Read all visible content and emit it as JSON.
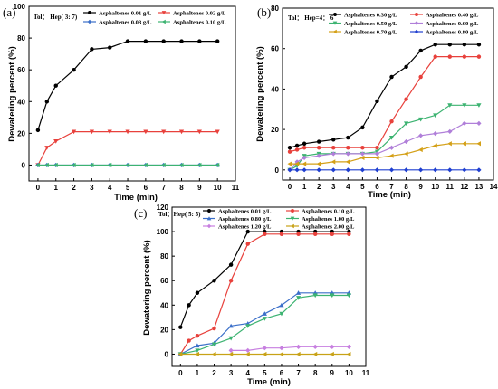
{
  "chart_data": [
    {
      "type": "line",
      "panel": "(a)",
      "annotation": "Tol： Hep( 3: 7)",
      "xlabel": "Time (min)",
      "ylabel": "Dewatering percent (%)",
      "xlim": [
        -0.5,
        11
      ],
      "ylim": [
        -10,
        100
      ],
      "xticks": [
        "0",
        "1",
        "2",
        "3",
        "4",
        "5",
        "6",
        "7",
        "8",
        "9",
        "10",
        "11"
      ],
      "yticks": [
        "0",
        "20",
        "40",
        "60",
        "80",
        "100"
      ],
      "series": [
        {
          "name": "Asphaltenes 0.01 g/L",
          "color": "#000000",
          "marker": "circle",
          "x": [
            0,
            0.5,
            1,
            2,
            3,
            4,
            5,
            6,
            7,
            8,
            9,
            10
          ],
          "y": [
            22,
            40,
            50,
            60,
            73,
            74,
            78,
            78,
            78,
            78,
            78,
            78
          ]
        },
        {
          "name": "Asphaltenes 0.02 g/L",
          "color": "#e8413c",
          "marker": "triangle-down",
          "x": [
            0,
            0.5,
            1,
            2,
            3,
            4,
            5,
            6,
            7,
            8,
            9,
            10
          ],
          "y": [
            0,
            11,
            15,
            21,
            21,
            21,
            21,
            21,
            21,
            21,
            21,
            21
          ]
        },
        {
          "name": "Asphaltenes 0.03 g/L",
          "color": "#3b6fc9",
          "marker": "diamond",
          "x": [
            0,
            0.5,
            1,
            2,
            3,
            4,
            5,
            6,
            7,
            8,
            9,
            10
          ],
          "y": [
            0,
            0,
            0,
            0,
            0,
            0,
            0,
            0,
            0,
            0,
            0,
            0
          ]
        },
        {
          "name": "Asphaltenes 0.10 g/L",
          "color": "#3cb371",
          "marker": "triangle-left",
          "x": [
            0,
            0.5,
            1,
            2,
            3,
            4,
            5,
            6,
            7,
            8,
            9,
            10
          ],
          "y": [
            0,
            0,
            0,
            0,
            0,
            0,
            0,
            0,
            0,
            0,
            0,
            0
          ]
        }
      ]
    },
    {
      "type": "line",
      "panel": "(b)",
      "annotation": "Tol： Hep=4： 6",
      "xlabel": "Time (min)",
      "ylabel": "Dewatering percent (%)",
      "xlim": [
        -0.5,
        14
      ],
      "ylim": [
        -5,
        80
      ],
      "xticks": [
        "0",
        "1",
        "2",
        "3",
        "4",
        "5",
        "6",
        "7",
        "8",
        "9",
        "10",
        "11",
        "12",
        "13",
        "14"
      ],
      "yticks": [
        "0",
        "20",
        "40",
        "60",
        "80"
      ],
      "series": [
        {
          "name": "Asphaltenes 0.30 g/L",
          "color": "#000000",
          "marker": "circle",
          "x": [
            0,
            0.5,
            1,
            2,
            3,
            4,
            5,
            6,
            7,
            8,
            9,
            10,
            11,
            12,
            13
          ],
          "y": [
            11,
            12,
            13,
            14,
            15,
            16,
            21,
            34,
            46,
            51,
            59,
            62,
            62,
            62,
            62
          ]
        },
        {
          "name": "Asphaltenes 0.40 g/L",
          "color": "#e8413c",
          "marker": "circle",
          "x": [
            0,
            0.5,
            1,
            2,
            3,
            4,
            5,
            6,
            7,
            8,
            9,
            10,
            11,
            12,
            13
          ],
          "y": [
            9,
            10,
            11,
            11,
            11,
            11,
            11,
            11,
            24,
            35,
            46,
            56,
            56,
            56,
            56
          ]
        },
        {
          "name": "Asphaltenes 0.50 g/L",
          "color": "#3cb371",
          "marker": "triangle-down",
          "x": [
            0,
            0.5,
            1,
            2,
            3,
            4,
            5,
            6,
            7,
            8,
            9,
            10,
            11,
            12,
            13
          ],
          "y": [
            0,
            2,
            7,
            8,
            8,
            8,
            8,
            9,
            16,
            23,
            25,
            27,
            32,
            32,
            32
          ]
        },
        {
          "name": "Asphaltenes 0.60 g/L",
          "color": "#b07fd9",
          "marker": "diamond",
          "x": [
            0,
            0.5,
            1,
            2,
            3,
            4,
            5,
            6,
            7,
            8,
            9,
            10,
            11,
            12,
            13
          ],
          "y": [
            0,
            4,
            6,
            7,
            8,
            8,
            8,
            8,
            11,
            14,
            17,
            18,
            19,
            23,
            23
          ]
        },
        {
          "name": "Asphaltenes 0.70 g/L",
          "color": "#d4a017",
          "marker": "triangle-left",
          "x": [
            0,
            0.5,
            1,
            2,
            3,
            4,
            5,
            6,
            7,
            8,
            9,
            10,
            11,
            12,
            13
          ],
          "y": [
            3,
            3,
            3,
            3,
            4,
            4,
            6,
            6,
            7,
            8,
            10,
            12,
            13,
            13,
            13
          ]
        },
        {
          "name": "Asphaltenes 0.80 g/L",
          "color": "#1f3fd0",
          "marker": "diamond",
          "x": [
            0,
            0.5,
            1,
            2,
            3,
            4,
            5,
            6,
            7,
            8,
            9,
            10,
            11,
            12,
            13
          ],
          "y": [
            0,
            0,
            0,
            0,
            0,
            0,
            0,
            0,
            0,
            0,
            0,
            0,
            0,
            0,
            0
          ]
        }
      ]
    },
    {
      "type": "line",
      "panel": "(c)",
      "annotation": "Tol：Hep( 5: 5)",
      "xlabel": "Time (min)",
      "ylabel": "Dewatering percent (%)",
      "xlim": [
        -0.5,
        11
      ],
      "ylim": [
        -10,
        120
      ],
      "xticks": [
        "0",
        "1",
        "2",
        "3",
        "4",
        "5",
        "6",
        "7",
        "8",
        "9",
        "10",
        "11"
      ],
      "yticks": [
        "0",
        "20",
        "40",
        "60",
        "80",
        "100",
        "120"
      ],
      "series": [
        {
          "name": "Asphaltenes 0.01 g/L",
          "color": "#000000",
          "marker": "circle",
          "x": [
            0,
            0.5,
            1,
            2,
            3,
            4,
            5,
            6,
            7,
            8,
            9,
            10
          ],
          "y": [
            22,
            40,
            50,
            60,
            73,
            100,
            100,
            100,
            100,
            100,
            100,
            100
          ]
        },
        {
          "name": "Asphaltenes 0.10 g/L",
          "color": "#e8413c",
          "marker": "circle",
          "x": [
            0,
            0.5,
            1,
            2,
            3,
            4,
            5,
            6,
            7,
            8,
            9,
            10
          ],
          "y": [
            0,
            11,
            15,
            21,
            60,
            90,
            98,
            98,
            98,
            98,
            98,
            98
          ]
        },
        {
          "name": "Asphaltenes 0.80 g/L",
          "color": "#3b6fc9",
          "marker": "triangle-up",
          "x": [
            0,
            1,
            2,
            3,
            4,
            5,
            6,
            7,
            8,
            9,
            10
          ],
          "y": [
            0,
            7,
            9,
            23,
            25,
            33,
            40,
            50,
            50,
            50,
            50
          ]
        },
        {
          "name": "Asphaltenes 1.00 g/L",
          "color": "#3cb371",
          "marker": "triangle-down",
          "x": [
            0,
            1,
            2,
            3,
            4,
            5,
            6,
            7,
            8,
            9,
            10
          ],
          "y": [
            0,
            3,
            8,
            13,
            23,
            29,
            33,
            46,
            48,
            48,
            48
          ]
        },
        {
          "name": "Asphaltenes 1.20 g/L",
          "color": "#c77fe0",
          "marker": "diamond",
          "x": [
            3,
            4,
            5,
            6,
            7,
            8,
            9,
            10
          ],
          "y": [
            3,
            3,
            5,
            5,
            6,
            6,
            6,
            6
          ]
        },
        {
          "name": "Asphaltenes 2.00 g/L",
          "color": "#c8a217",
          "marker": "triangle-left",
          "x": [
            0,
            1,
            2,
            3,
            4,
            5,
            6,
            7,
            8,
            9,
            10
          ],
          "y": [
            0,
            0,
            0,
            0,
            0,
            0,
            0,
            0,
            0,
            0,
            0
          ]
        }
      ]
    }
  ]
}
